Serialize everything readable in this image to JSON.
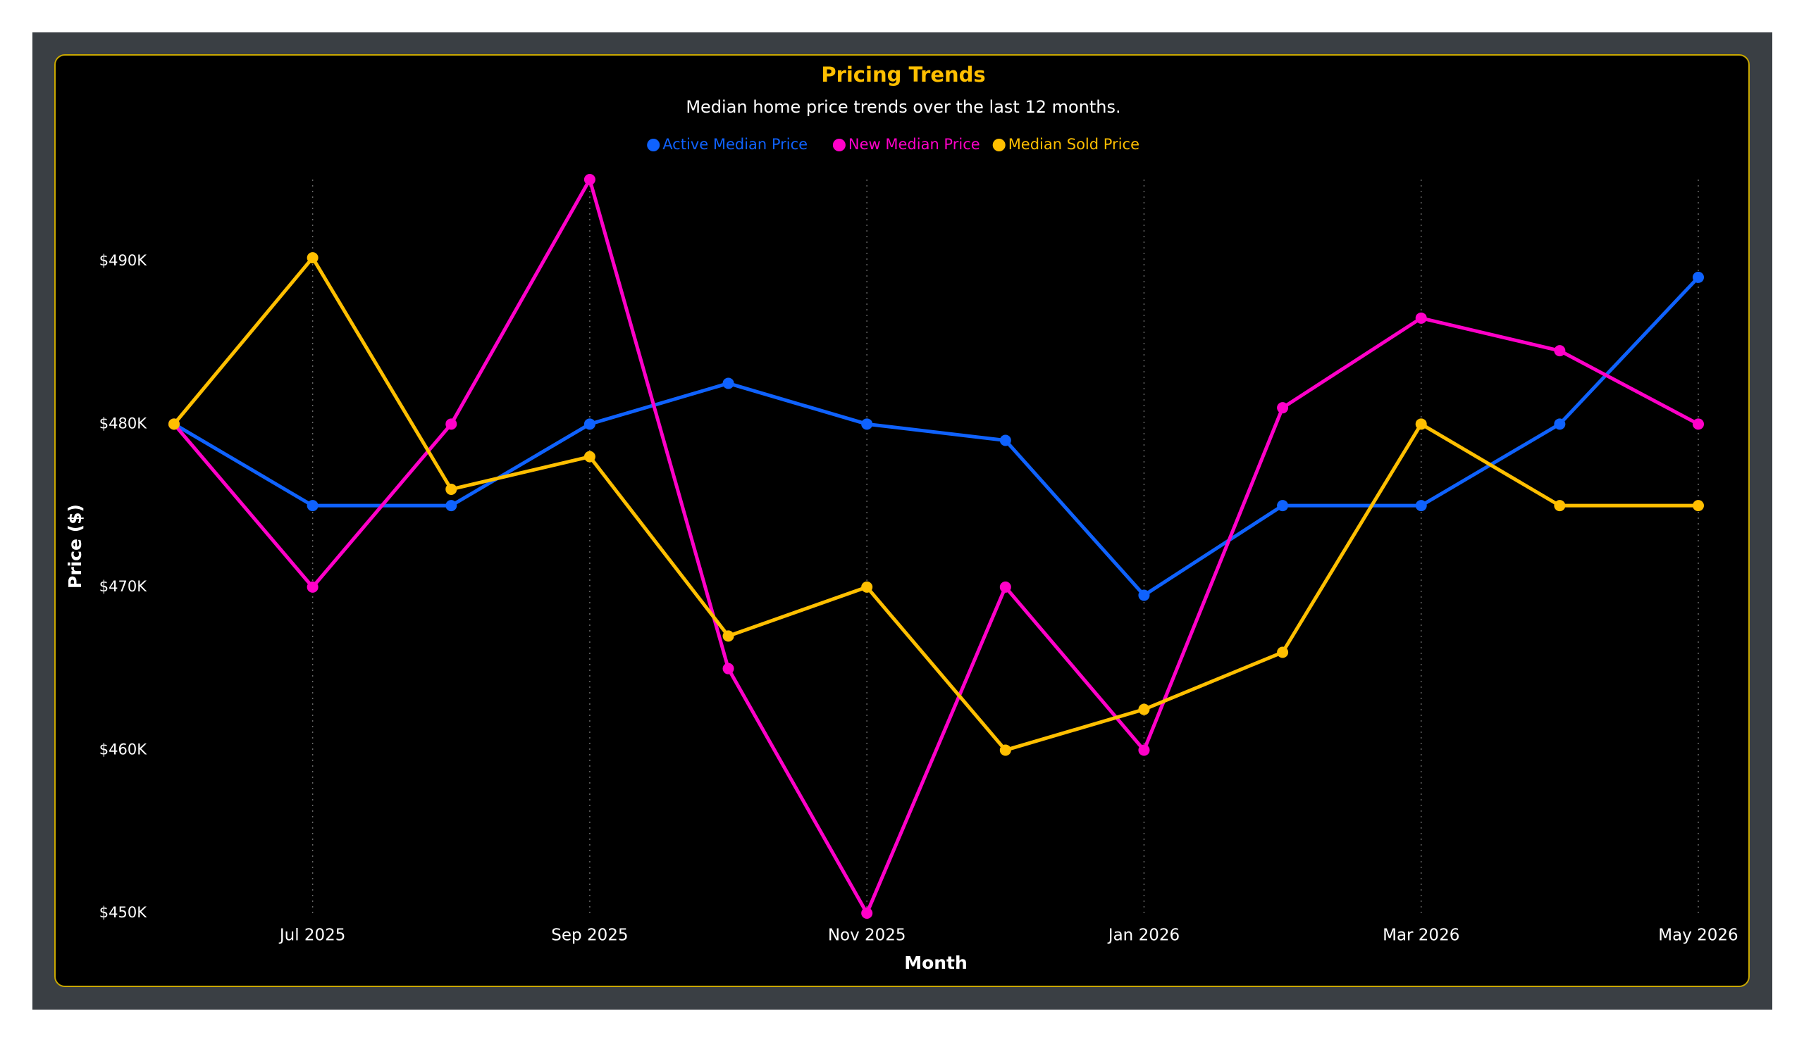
{
  "chart_data": {
    "type": "line",
    "title": "Pricing Trends",
    "subtitle": "Median home price trends over the last 12 months.",
    "x_label": "Month",
    "y_label": "Price ($)",
    "categories": [
      null,
      "Jul 2025",
      null,
      "Sep 2025",
      null,
      "Nov 2025",
      null,
      "Jan 2026",
      null,
      "Mar 2026",
      null,
      "May 2026"
    ],
    "series": [
      {
        "name": "Active Median Price",
        "color": "#0f62fe",
        "values": [
          480000,
          475000,
          475000,
          480000,
          482500,
          480000,
          479000,
          469500,
          475000,
          475000,
          480000,
          489000
        ]
      },
      {
        "name": "New Median Price",
        "color": "#ff00c8",
        "values": [
          480000,
          470000,
          480000,
          495000,
          465000,
          450000,
          470000,
          460000,
          481000,
          486500,
          484500,
          480000
        ]
      },
      {
        "name": "Median Sold Price",
        "color": "#ffbf00",
        "values": [
          480000,
          490200,
          476000,
          478000,
          467000,
          470000,
          460000,
          462500,
          466000,
          480000,
          475000,
          475000
        ]
      }
    ],
    "ylim": [
      450000,
      495000
    ],
    "yticks": [
      {
        "value": 450000,
        "label": "$450K"
      },
      {
        "value": 460000,
        "label": "$460K"
      },
      {
        "value": 470000,
        "label": "$470K"
      },
      {
        "value": 480000,
        "label": "$480K"
      },
      {
        "value": 490000,
        "label": "$490K"
      }
    ],
    "grid": "x",
    "legend": "top"
  }
}
